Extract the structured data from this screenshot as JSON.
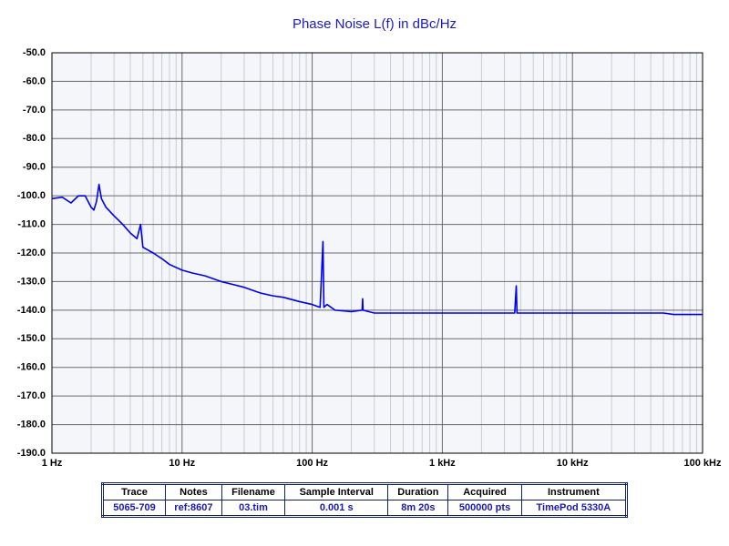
{
  "chart_data": {
    "type": "line",
    "title": "Phase Noise L(f) in dBc/Hz",
    "x": [
      1,
      1.2,
      1.4,
      1.6,
      1.8,
      2,
      2.1,
      2.2,
      2.3,
      2.4,
      2.6,
      3,
      3.5,
      4,
      4.5,
      4.8,
      5,
      6,
      7,
      8,
      10,
      12,
      15,
      20,
      30,
      40,
      50,
      60,
      80,
      100,
      115,
      121,
      123,
      130,
      150,
      200,
      242,
      244,
      246,
      300,
      500,
      1000,
      2000,
      3600,
      3700,
      3750,
      5000,
      10000,
      20000,
      50000,
      60000,
      100000
    ],
    "values": [
      -101,
      -100.5,
      -102.5,
      -100,
      -100,
      -104,
      -105,
      -102,
      -96,
      -101,
      -104,
      -107,
      -110,
      -113,
      -115,
      -110,
      -118,
      -120,
      -122,
      -124,
      -126,
      -127,
      -128,
      -130,
      -132,
      -134,
      -135,
      -135.5,
      -137,
      -138,
      -139,
      -116,
      -139,
      -138,
      -140,
      -140.5,
      -140,
      -136,
      -140,
      -141,
      -141,
      -141,
      -141,
      -141,
      -131.5,
      -141,
      -141,
      -141,
      -141,
      -141,
      -141.5,
      -141.5
    ],
    "color": "#0000ee",
    "log_x": true,
    "xlim": [
      1,
      100000
    ],
    "xticks": [
      {
        "value": 1,
        "label": "1 Hz"
      },
      {
        "value": 10,
        "label": "10 Hz"
      },
      {
        "value": 100,
        "label": "100 Hz"
      },
      {
        "value": 1000,
        "label": "1 kHz"
      },
      {
        "value": 10000,
        "label": "10 kHz"
      },
      {
        "value": 100000,
        "label": "100 kHz"
      }
    ],
    "xminorticks": [
      2,
      3,
      4,
      5,
      6,
      7,
      8,
      9,
      20,
      30,
      40,
      50,
      60,
      70,
      80,
      90,
      200,
      300,
      400,
      500,
      600,
      700,
      800,
      900,
      2000,
      3000,
      4000,
      5000,
      6000,
      7000,
      8000,
      9000,
      20000,
      30000,
      40000,
      50000,
      60000,
      70000,
      80000,
      90000
    ],
    "ylim": [
      -190,
      -50
    ],
    "yticks": [
      {
        "value": -50,
        "label": "-50.0"
      },
      {
        "value": -60,
        "label": "-60.0"
      },
      {
        "value": -70,
        "label": "-70.0"
      },
      {
        "value": -80,
        "label": "-80.0"
      },
      {
        "value": -90,
        "label": "-90.0"
      },
      {
        "value": -100,
        "label": "-100.0"
      },
      {
        "value": -110,
        "label": "-110.0"
      },
      {
        "value": -120,
        "label": "-120.0"
      },
      {
        "value": -130,
        "label": "-130.0"
      },
      {
        "value": -140,
        "label": "-140.0"
      },
      {
        "value": -150,
        "label": "-150.0"
      },
      {
        "value": -160,
        "label": "-160.0"
      },
      {
        "value": -170,
        "label": "-170.0"
      },
      {
        "value": -180,
        "label": "-180.0"
      },
      {
        "value": -190,
        "label": "-190.0"
      }
    ],
    "grid": true
  },
  "table": {
    "header": [
      "Trace",
      "Notes",
      "Filename",
      "Sample Interval",
      "Duration",
      "Acquired",
      "Instrument"
    ],
    "row": [
      "5065-709",
      "ref:8607",
      "03.tim",
      "0.001 s",
      "8m 20s",
      "500000 pts",
      "TimePod 5330A"
    ]
  }
}
